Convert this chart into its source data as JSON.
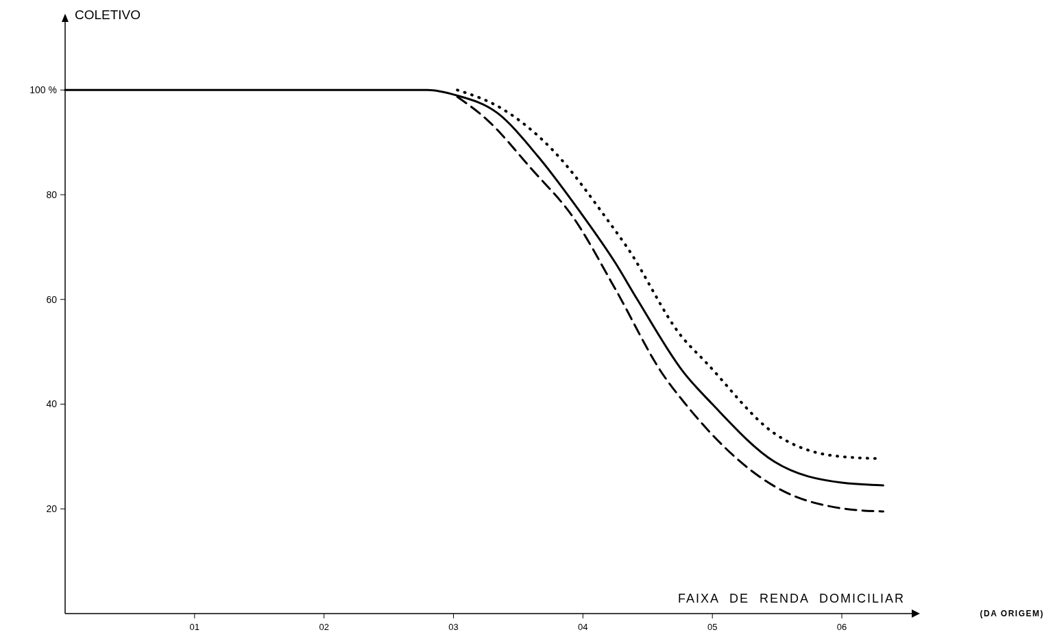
{
  "chart_data": {
    "type": "line",
    "xlabel": "FAIXA DE RENDA DOMICILIAR",
    "ylabel": "COLETIVO",
    "annotations": [
      "(DA ORIGEM)"
    ],
    "xlim": [
      0,
      6.54
    ],
    "ylim": [
      0,
      113
    ],
    "xticks": [
      {
        "value": 1,
        "label": "01"
      },
      {
        "value": 2,
        "label": "02"
      },
      {
        "value": 3,
        "label": "03"
      },
      {
        "value": 4,
        "label": "04"
      },
      {
        "value": 5,
        "label": "05"
      },
      {
        "value": 6,
        "label": "06"
      }
    ],
    "yticks": [
      20,
      40,
      60,
      80,
      {
        "value": 100,
        "label": "100 %"
      }
    ],
    "grid": false,
    "marker": "none",
    "series": [
      {
        "color": "#000000",
        "line_style": "solid",
        "x": [
          0,
          1,
          2,
          2.8,
          3.02,
          3.34,
          3.65,
          3.97,
          4.25,
          4.42,
          4.78,
          5.0,
          5.48,
          6.0,
          6.32
        ],
        "values": [
          100,
          100,
          100,
          100,
          99,
          95.6,
          87.4,
          77,
          67,
          60,
          46,
          40,
          29,
          25,
          24.5
        ]
      },
      {
        "color": "#000000",
        "line_style": "dotted",
        "x": [
          3.03,
          3.37,
          3.76,
          4.21,
          4.34,
          4.76,
          4.95,
          5.48,
          5.92,
          6.28
        ],
        "values": [
          100,
          96.5,
          88.7,
          74.5,
          70,
          53,
          48,
          34.4,
          30.2,
          29.6
        ]
      },
      {
        "color": "#000000",
        "line_style": "dashed",
        "x": [
          3.03,
          3.26,
          3.6,
          3.93,
          4.25,
          4.62,
          4.78,
          5.48,
          6.0,
          6.32
        ],
        "values": [
          98.7,
          94.3,
          85,
          75.5,
          62,
          45.6,
          40.4,
          24.3,
          20.1,
          19.5
        ]
      }
    ]
  }
}
